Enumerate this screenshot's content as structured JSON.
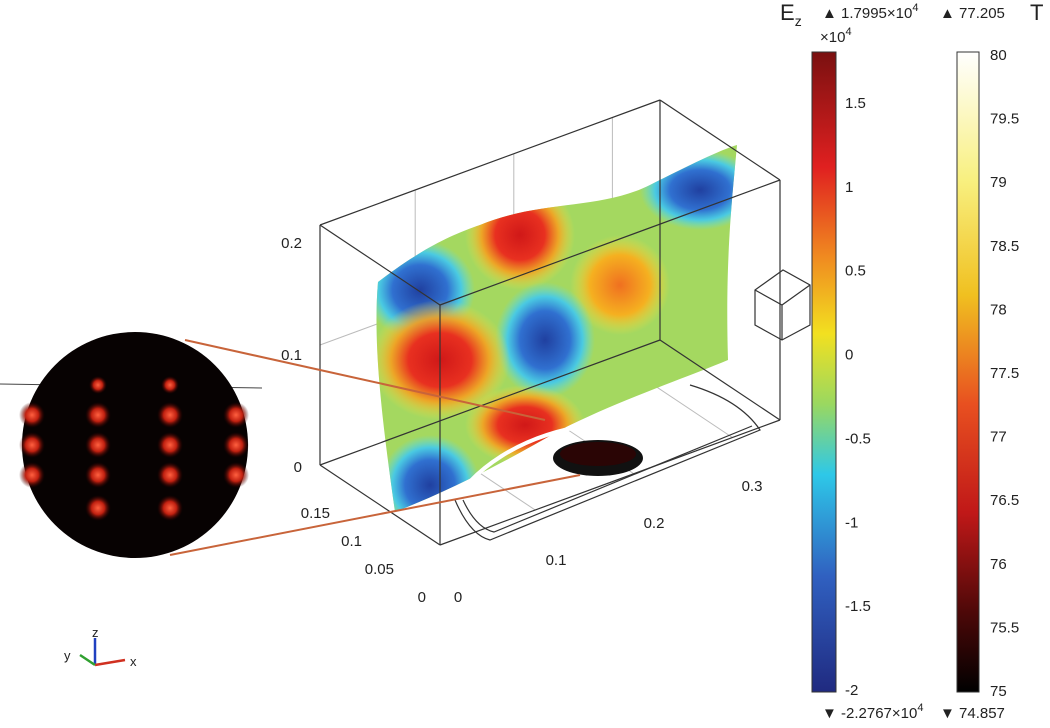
{
  "colorbar_ez": {
    "title": "E",
    "title_sub": "z",
    "max_text": "▲ 1.7995×10",
    "max_exp": "4",
    "multiplier": "×10",
    "multiplier_exp": "4",
    "ticks": [
      "1.5",
      "1",
      "0.5",
      "0",
      "-0.5",
      "-1",
      "-1.5",
      "-2"
    ],
    "min_text": "▼ -2.2767×10",
    "min_exp": "4"
  },
  "colorbar_t": {
    "title": "T",
    "max_text": "▲ 77.205",
    "ticks": [
      "80",
      "79.5",
      "79",
      "78.5",
      "78",
      "77.5",
      "77",
      "76.5",
      "76",
      "75.5",
      "75"
    ],
    "min_text": "▼ 74.857"
  },
  "axes": {
    "z_ticks": [
      "0.2",
      "0.1",
      "0"
    ],
    "y_ticks": [
      "0.15",
      "0.1",
      "0.05",
      "0"
    ],
    "x_ticks": [
      "0",
      "0.1",
      "0.2",
      "0.3"
    ]
  },
  "triad": {
    "x": "x",
    "y": "y",
    "z": "z"
  }
}
